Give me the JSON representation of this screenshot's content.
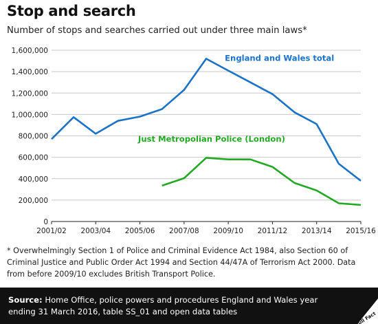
{
  "title": "Stop and search",
  "subtitle": "Number of stops and searches carried out under three main laws*",
  "note": "* Overwhelmingly Section 1 of Police and Criminal Evidence Act 1984, also Section 60 of Criminal Justice and Public Order Act 1994 and Section 44/47A of Terrorism Act 2000. Data from before 2009/10 excludes British Transport Police.",
  "footer": {
    "source_label": "Source:",
    "source_text": " Home Office, police powers and procedures England and Wales year ending 31 March 2016, table SS_01 and open data tables",
    "logo_text": "Full Fact"
  },
  "chart_data": {
    "type": "line",
    "x": [
      "2001/02",
      "2002/03",
      "2003/04",
      "2004/05",
      "2005/06",
      "2006/07",
      "2007/08",
      "2008/09",
      "2009/10",
      "2010/11",
      "2011/12",
      "2012/13",
      "2013/14",
      "2014/15",
      "2015/16"
    ],
    "x_tick_labels": [
      "2001/02",
      "2003/04",
      "2005/06",
      "2007/08",
      "2009/10",
      "2011/12",
      "2013/14",
      "2015/16"
    ],
    "ylim": [
      0,
      1600000
    ],
    "y_ticks": [
      0,
      200000,
      400000,
      600000,
      800000,
      1000000,
      1200000,
      1400000,
      1600000
    ],
    "y_tick_labels": [
      "0",
      "200,000",
      "400,000",
      "600,000",
      "800,000",
      "1,000,000",
      "1,200,000",
      "1,400,000",
      "1,600,000"
    ],
    "grid": true,
    "series": [
      {
        "name": "England and Wales total",
        "color": "#1a73c9",
        "values": [
          770000,
          975000,
          820000,
          940000,
          980000,
          1050000,
          1230000,
          1520000,
          1410000,
          1300000,
          1190000,
          1020000,
          910000,
          540000,
          380000
        ]
      },
      {
        "name": "Just Metropolian Police (London)",
        "color": "#22aa22",
        "values": [
          null,
          null,
          null,
          null,
          null,
          335000,
          405000,
          595000,
          580000,
          580000,
          510000,
          360000,
          290000,
          170000,
          155000
        ]
      }
    ]
  }
}
